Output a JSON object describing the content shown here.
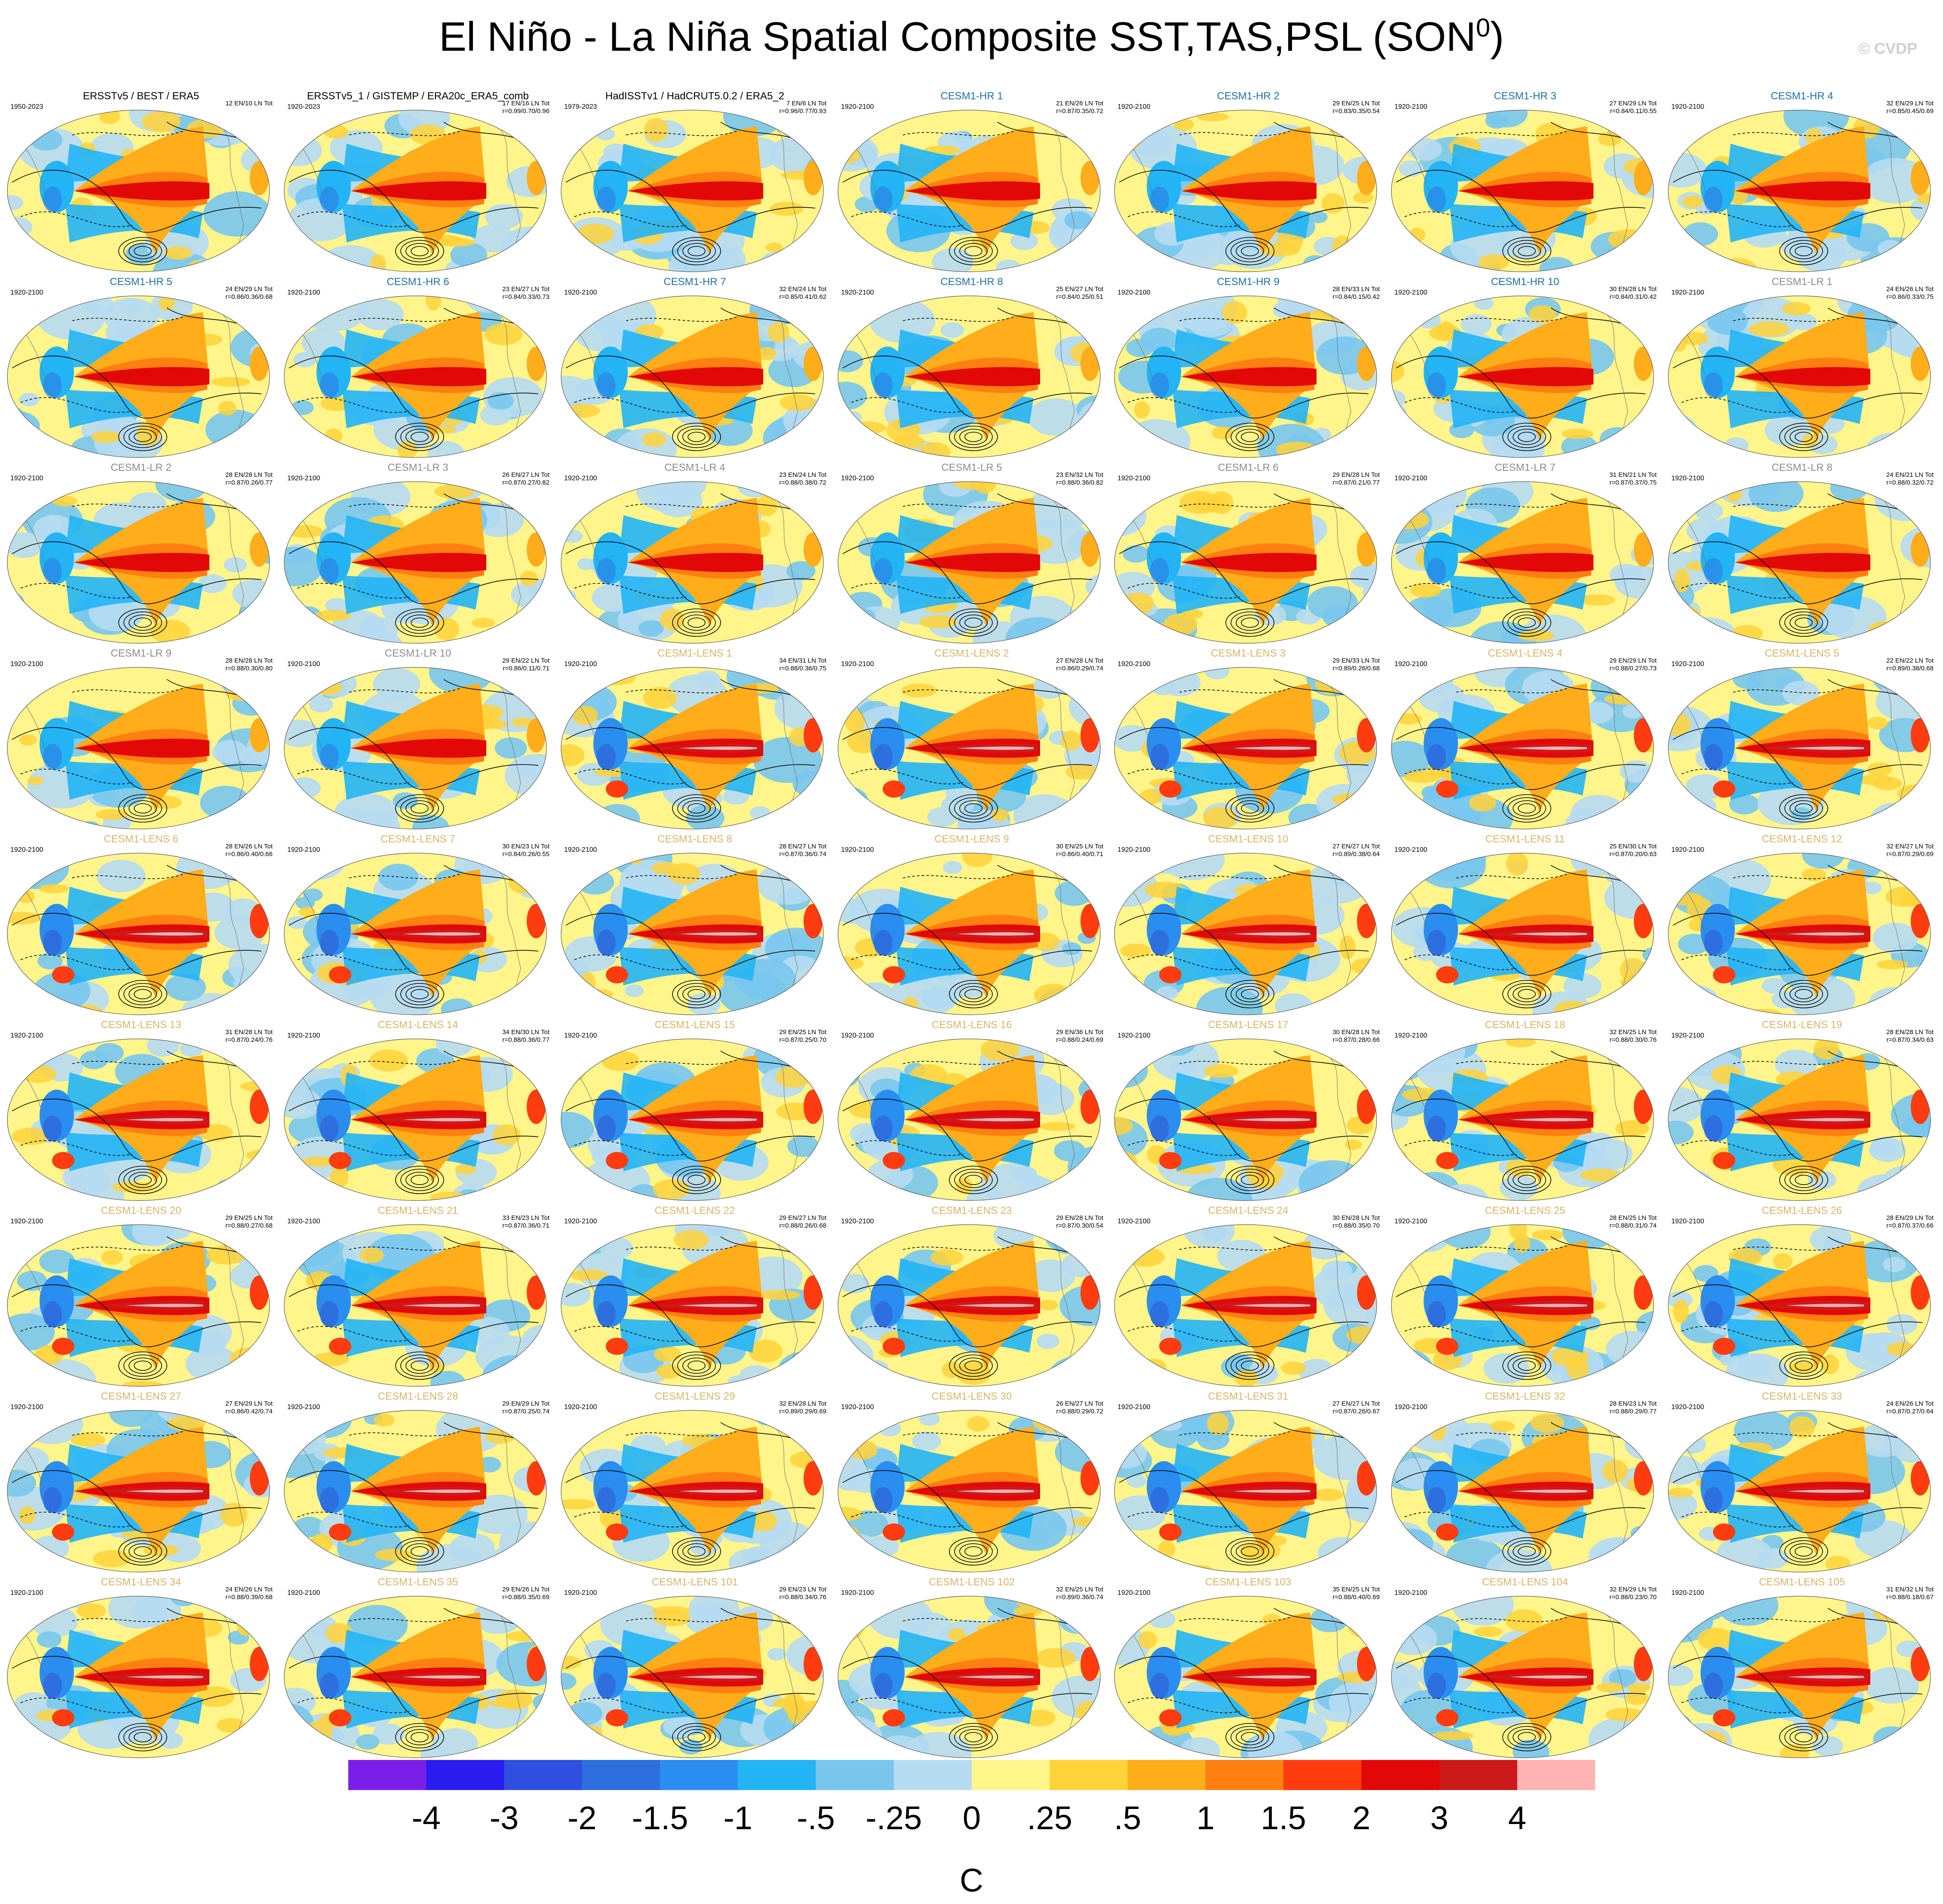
{
  "title": "El Niño - La Niña Spatial Composite SST,TAS,PSL (SON",
  "title_superscript": "0",
  "title_close": ")",
  "copyright": "© CVDP",
  "colors": {
    "obs_title": "#000000",
    "hr_title": "#1f6fa8",
    "lr_title": "#8c8c8c",
    "lens_title": "#d9b56a",
    "contour": "#000000"
  },
  "chart_data": {
    "type": "heatmap",
    "layout": "9 rows x 7 panels of global maps",
    "field": "El Niño minus La Niña composite SST / TAS (shaded) with PSL (contours)",
    "panels": [
      {
        "title": "ERSSTv5 / BEST / ERA5",
        "years": "1950-2023",
        "counts": "12 EN/10 LN Tot",
        "stats": "",
        "group": "obs"
      },
      {
        "title": "ERSSTv5_1 / GISTEMP / ERA20c_ERA5_comb",
        "years": "1920-2023",
        "counts": "17 EN/16 LN Tot",
        "stats": "r=0.99/0.70/0.96",
        "group": "obs"
      },
      {
        "title": "HadISSTv1 / HadCRUT5.0.2 / ERA5_2",
        "years": "1979-2023",
        "counts": "7 EN/6 LN Tot",
        "stats": "r=0.96/0.77/0.93",
        "group": "obs"
      },
      {
        "title": "CESM1-HR 1",
        "years": "1920-2100",
        "counts": "21 EN/26 LN Tot",
        "stats": "r=0.87/0.35/0.72",
        "group": "hr"
      },
      {
        "title": "CESM1-HR 2",
        "years": "1920-2100",
        "counts": "29 EN/25 LN Tot",
        "stats": "r=0.83/0.35/0.54",
        "group": "hr"
      },
      {
        "title": "CESM1-HR 3",
        "years": "1920-2100",
        "counts": "27 EN/29 LN Tot",
        "stats": "r=0.84/0.11/0.55",
        "group": "hr"
      },
      {
        "title": "CESM1-HR 4",
        "years": "1920-2100",
        "counts": "32 EN/29 LN Tot",
        "stats": "r=0.85/0.45/0.69",
        "group": "hr"
      },
      {
        "title": "CESM1-HR 5",
        "years": "1920-2100",
        "counts": "24 EN/29 LN Tot",
        "stats": "r=0.86/0.36/0.68",
        "group": "hr"
      },
      {
        "title": "CESM1-HR 6",
        "years": "1920-2100",
        "counts": "23 EN/27 LN Tot",
        "stats": "r=0.84/0.33/0.73",
        "group": "hr"
      },
      {
        "title": "CESM1-HR 7",
        "years": "1920-2100",
        "counts": "32 EN/24 LN Tot",
        "stats": "r=0.85/0.41/0.62",
        "group": "hr"
      },
      {
        "title": "CESM1-HR 8",
        "years": "1920-2100",
        "counts": "25 EN/27 LN Tot",
        "stats": "r=0.84/0.25/0.51",
        "group": "hr"
      },
      {
        "title": "CESM1-HR 9",
        "years": "1920-2100",
        "counts": "28 EN/33 LN Tot",
        "stats": "r=0.84/0.15/0.42",
        "group": "hr"
      },
      {
        "title": "CESM1-HR 10",
        "years": "1920-2100",
        "counts": "30 EN/28 LN Tot",
        "stats": "r=0.84/0.31/0.42",
        "group": "hr"
      },
      {
        "title": "CESM1-LR 1",
        "years": "1920-2100",
        "counts": "24 EN/26 LN Tot",
        "stats": "r=0.86/0.33/0.75",
        "group": "lr"
      },
      {
        "title": "CESM1-LR 2",
        "years": "1920-2100",
        "counts": "28 EN/28 LN Tot",
        "stats": "r=0.87/0.26/0.77",
        "group": "lr"
      },
      {
        "title": "CESM1-LR 3",
        "years": "1920-2100",
        "counts": "26 EN/27 LN Tot",
        "stats": "r=0.87/0.27/0.82",
        "group": "lr"
      },
      {
        "title": "CESM1-LR 4",
        "years": "1920-2100",
        "counts": "23 EN/24 LN Tot",
        "stats": "r=0.88/0.38/0.72",
        "group": "lr"
      },
      {
        "title": "CESM1-LR 5",
        "years": "1920-2100",
        "counts": "23 EN/32 LN Tot",
        "stats": "r=0.88/0.36/0.82",
        "group": "lr"
      },
      {
        "title": "CESM1-LR 6",
        "years": "1920-2100",
        "counts": "29 EN/28 LN Tot",
        "stats": "r=0.87/0.21/0.77",
        "group": "lr"
      },
      {
        "title": "CESM1-LR 7",
        "years": "1920-2100",
        "counts": "31 EN/21 LN Tot",
        "stats": "r=0.87/0.37/0.75",
        "group": "lr"
      },
      {
        "title": "CESM1-LR 8",
        "years": "1920-2100",
        "counts": "24 EN/21 LN Tot",
        "stats": "r=0.88/0.32/0.72",
        "group": "lr"
      },
      {
        "title": "CESM1-LR 9",
        "years": "1920-2100",
        "counts": "28 EN/28 LN Tot",
        "stats": "r=0.88/0.30/0.80",
        "group": "lr"
      },
      {
        "title": "CESM1-LR 10",
        "years": "1920-2100",
        "counts": "29 EN/22 LN Tot",
        "stats": "r=0.86/0.11/0.71",
        "group": "lr"
      },
      {
        "title": "CESM1-LENS 1",
        "years": "1920-2100",
        "counts": "34 EN/31 LN Tot",
        "stats": "r=0.88/0.36/0.75",
        "group": "lens"
      },
      {
        "title": "CESM1-LENS 2",
        "years": "1920-2100",
        "counts": "27 EN/28 LN Tot",
        "stats": "r=0.86/0.29/0.74",
        "group": "lens"
      },
      {
        "title": "CESM1-LENS 3",
        "years": "1920-2100",
        "counts": "29 EN/33 LN Tot",
        "stats": "r=0.89/0.26/0.68",
        "group": "lens"
      },
      {
        "title": "CESM1-LENS 4",
        "years": "1920-2100",
        "counts": "29 EN/29 LN Tot",
        "stats": "r=0.88/0.27/0.73",
        "group": "lens"
      },
      {
        "title": "CESM1-LENS 5",
        "years": "1920-2100",
        "counts": "22 EN/22 LN Tot",
        "stats": "r=0.89/0.38/0.68",
        "group": "lens"
      },
      {
        "title": "CESM1-LENS 6",
        "years": "1920-2100",
        "counts": "28 EN/26 LN Tot",
        "stats": "r=0.86/0.40/0.66",
        "group": "lens"
      },
      {
        "title": "CESM1-LENS 7",
        "years": "1920-2100",
        "counts": "30 EN/23 LN Tot",
        "stats": "r=0.84/0.26/0.55",
        "group": "lens"
      },
      {
        "title": "CESM1-LENS 8",
        "years": "1920-2100",
        "counts": "28 EN/27 LN Tot",
        "stats": "r=0.87/0.36/0.74",
        "group": "lens"
      },
      {
        "title": "CESM1-LENS 9",
        "years": "1920-2100",
        "counts": "30 EN/25 LN Tot",
        "stats": "r=0.86/0.40/0.71",
        "group": "lens"
      },
      {
        "title": "CESM1-LENS 10",
        "years": "1920-2100",
        "counts": "27 EN/27 LN Tot",
        "stats": "r=0.89/0.38/0.64",
        "group": "lens"
      },
      {
        "title": "CESM1-LENS 11",
        "years": "1920-2100",
        "counts": "25 EN/30 LN Tot",
        "stats": "r=0.87/0.20/0.63",
        "group": "lens"
      },
      {
        "title": "CESM1-LENS 12",
        "years": "1920-2100",
        "counts": "32 EN/27 LN Tot",
        "stats": "r=0.87/0.29/0.69",
        "group": "lens"
      },
      {
        "title": "CESM1-LENS 13",
        "years": "1920-2100",
        "counts": "31 EN/28 LN Tot",
        "stats": "r=0.87/0.24/0.76",
        "group": "lens"
      },
      {
        "title": "CESM1-LENS 14",
        "years": "1920-2100",
        "counts": "34 EN/30 LN Tot",
        "stats": "r=0.88/0.36/0.77",
        "group": "lens"
      },
      {
        "title": "CESM1-LENS 15",
        "years": "1920-2100",
        "counts": "29 EN/25 LN Tot",
        "stats": "r=0.87/0.25/0.70",
        "group": "lens"
      },
      {
        "title": "CESM1-LENS 16",
        "years": "1920-2100",
        "counts": "29 EN/36 LN Tot",
        "stats": "r=0.88/0.24/0.69",
        "group": "lens"
      },
      {
        "title": "CESM1-LENS 17",
        "years": "1920-2100",
        "counts": "30 EN/28 LN Tot",
        "stats": "r=0.87/0.28/0.66",
        "group": "lens"
      },
      {
        "title": "CESM1-LENS 18",
        "years": "1920-2100",
        "counts": "32 EN/25 LN Tot",
        "stats": "r=0.88/0.30/0.76",
        "group": "lens"
      },
      {
        "title": "CESM1-LENS 19",
        "years": "1920-2100",
        "counts": "28 EN/28 LN Tot",
        "stats": "r=0.87/0.34/0.63",
        "group": "lens"
      },
      {
        "title": "CESM1-LENS 20",
        "years": "1920-2100",
        "counts": "29 EN/25 LN Tot",
        "stats": "r=0.88/0.27/0.68",
        "group": "lens"
      },
      {
        "title": "CESM1-LENS 21",
        "years": "1920-2100",
        "counts": "33 EN/23 LN Tot",
        "stats": "r=0.87/0.36/0.71",
        "group": "lens"
      },
      {
        "title": "CESM1-LENS 22",
        "years": "1920-2100",
        "counts": "29 EN/27 LN Tot",
        "stats": "r=0.88/0.26/0.68",
        "group": "lens"
      },
      {
        "title": "CESM1-LENS 23",
        "years": "1920-2100",
        "counts": "29 EN/28 LN Tot",
        "stats": "r=0.87/0.30/0.54",
        "group": "lens"
      },
      {
        "title": "CESM1-LENS 24",
        "years": "1920-2100",
        "counts": "30 EN/28 LN Tot",
        "stats": "r=0.88/0.35/0.70",
        "group": "lens"
      },
      {
        "title": "CESM1-LENS 25",
        "years": "1920-2100",
        "counts": "28 EN/25 LN Tot",
        "stats": "r=0.88/0.31/0.74",
        "group": "lens"
      },
      {
        "title": "CESM1-LENS 26",
        "years": "1920-2100",
        "counts": "28 EN/29 LN Tot",
        "stats": "r=0.87/0.37/0.66",
        "group": "lens"
      },
      {
        "title": "CESM1-LENS 27",
        "years": "1920-2100",
        "counts": "27 EN/29 LN Tot",
        "stats": "r=0.86/0.42/0.74",
        "group": "lens"
      },
      {
        "title": "CESM1-LENS 28",
        "years": "1920-2100",
        "counts": "29 EN/29 LN Tot",
        "stats": "r=0.87/0.25/0.74",
        "group": "lens"
      },
      {
        "title": "CESM1-LENS 29",
        "years": "1920-2100",
        "counts": "32 EN/28 LN Tot",
        "stats": "r=0.89/0.29/0.69",
        "group": "lens"
      },
      {
        "title": "CESM1-LENS 30",
        "years": "1920-2100",
        "counts": "26 EN/27 LN Tot",
        "stats": "r=0.88/0.29/0.72",
        "group": "lens"
      },
      {
        "title": "CESM1-LENS 31",
        "years": "1920-2100",
        "counts": "27 EN/27 LN Tot",
        "stats": "r=0.87/0.26/0.67",
        "group": "lens"
      },
      {
        "title": "CESM1-LENS 32",
        "years": "1920-2100",
        "counts": "28 EN/23 LN Tot",
        "stats": "r=0.88/0.29/0.77",
        "group": "lens"
      },
      {
        "title": "CESM1-LENS 33",
        "years": "1920-2100",
        "counts": "24 EN/26 LN Tot",
        "stats": "r=0.87/0.27/0.64",
        "group": "lens"
      },
      {
        "title": "CESM1-LENS 34",
        "years": "1920-2100",
        "counts": "24 EN/26 LN Tot",
        "stats": "r=0.88/0.39/0.68",
        "group": "lens"
      },
      {
        "title": "CESM1-LENS 35",
        "years": "1920-2100",
        "counts": "29 EN/26 LN Tot",
        "stats": "r=0.88/0.35/0.69",
        "group": "lens"
      },
      {
        "title": "CESM1-LENS 101",
        "years": "1920-2100",
        "counts": "29 EN/23 LN Tot",
        "stats": "r=0.88/0.34/0.76",
        "group": "lens"
      },
      {
        "title": "CESM1-LENS 102",
        "years": "1920-2100",
        "counts": "32 EN/25 LN Tot",
        "stats": "r=0.89/0.36/0.74",
        "group": "lens"
      },
      {
        "title": "CESM1-LENS 103",
        "years": "1920-2100",
        "counts": "35 EN/25 LN Tot",
        "stats": "r=0.88/0.40/0.69",
        "group": "lens"
      },
      {
        "title": "CESM1-LENS 104",
        "years": "1920-2100",
        "counts": "32 EN/29 LN Tot",
        "stats": "r=0.88/0.23/0.70",
        "group": "lens"
      },
      {
        "title": "CESM1-LENS 105",
        "years": "1920-2100",
        "counts": "31 EN/32 LN Tot",
        "stats": "r=0.88/0.18/0.67",
        "group": "lens"
      }
    ],
    "colorbar": {
      "levels": [
        "-4",
        "-3",
        "-2",
        "-1.5",
        "-1",
        "-.5",
        "-.25",
        "0",
        ".25",
        ".5",
        "1",
        "1.5",
        "2",
        "3",
        "4"
      ],
      "colors": [
        "#7b1fe8",
        "#2a1bf0",
        "#2f4fe0",
        "#2e6fe0",
        "#2a8ef0",
        "#22b4f5",
        "#78c6ee",
        "#b6dcf2",
        "#fff58a",
        "#ffd23a",
        "#ffad1a",
        "#ff7f10",
        "#ff3c10",
        "#e20808",
        "#cc1a1a",
        "#ffb3b3"
      ],
      "unit": "C"
    }
  }
}
